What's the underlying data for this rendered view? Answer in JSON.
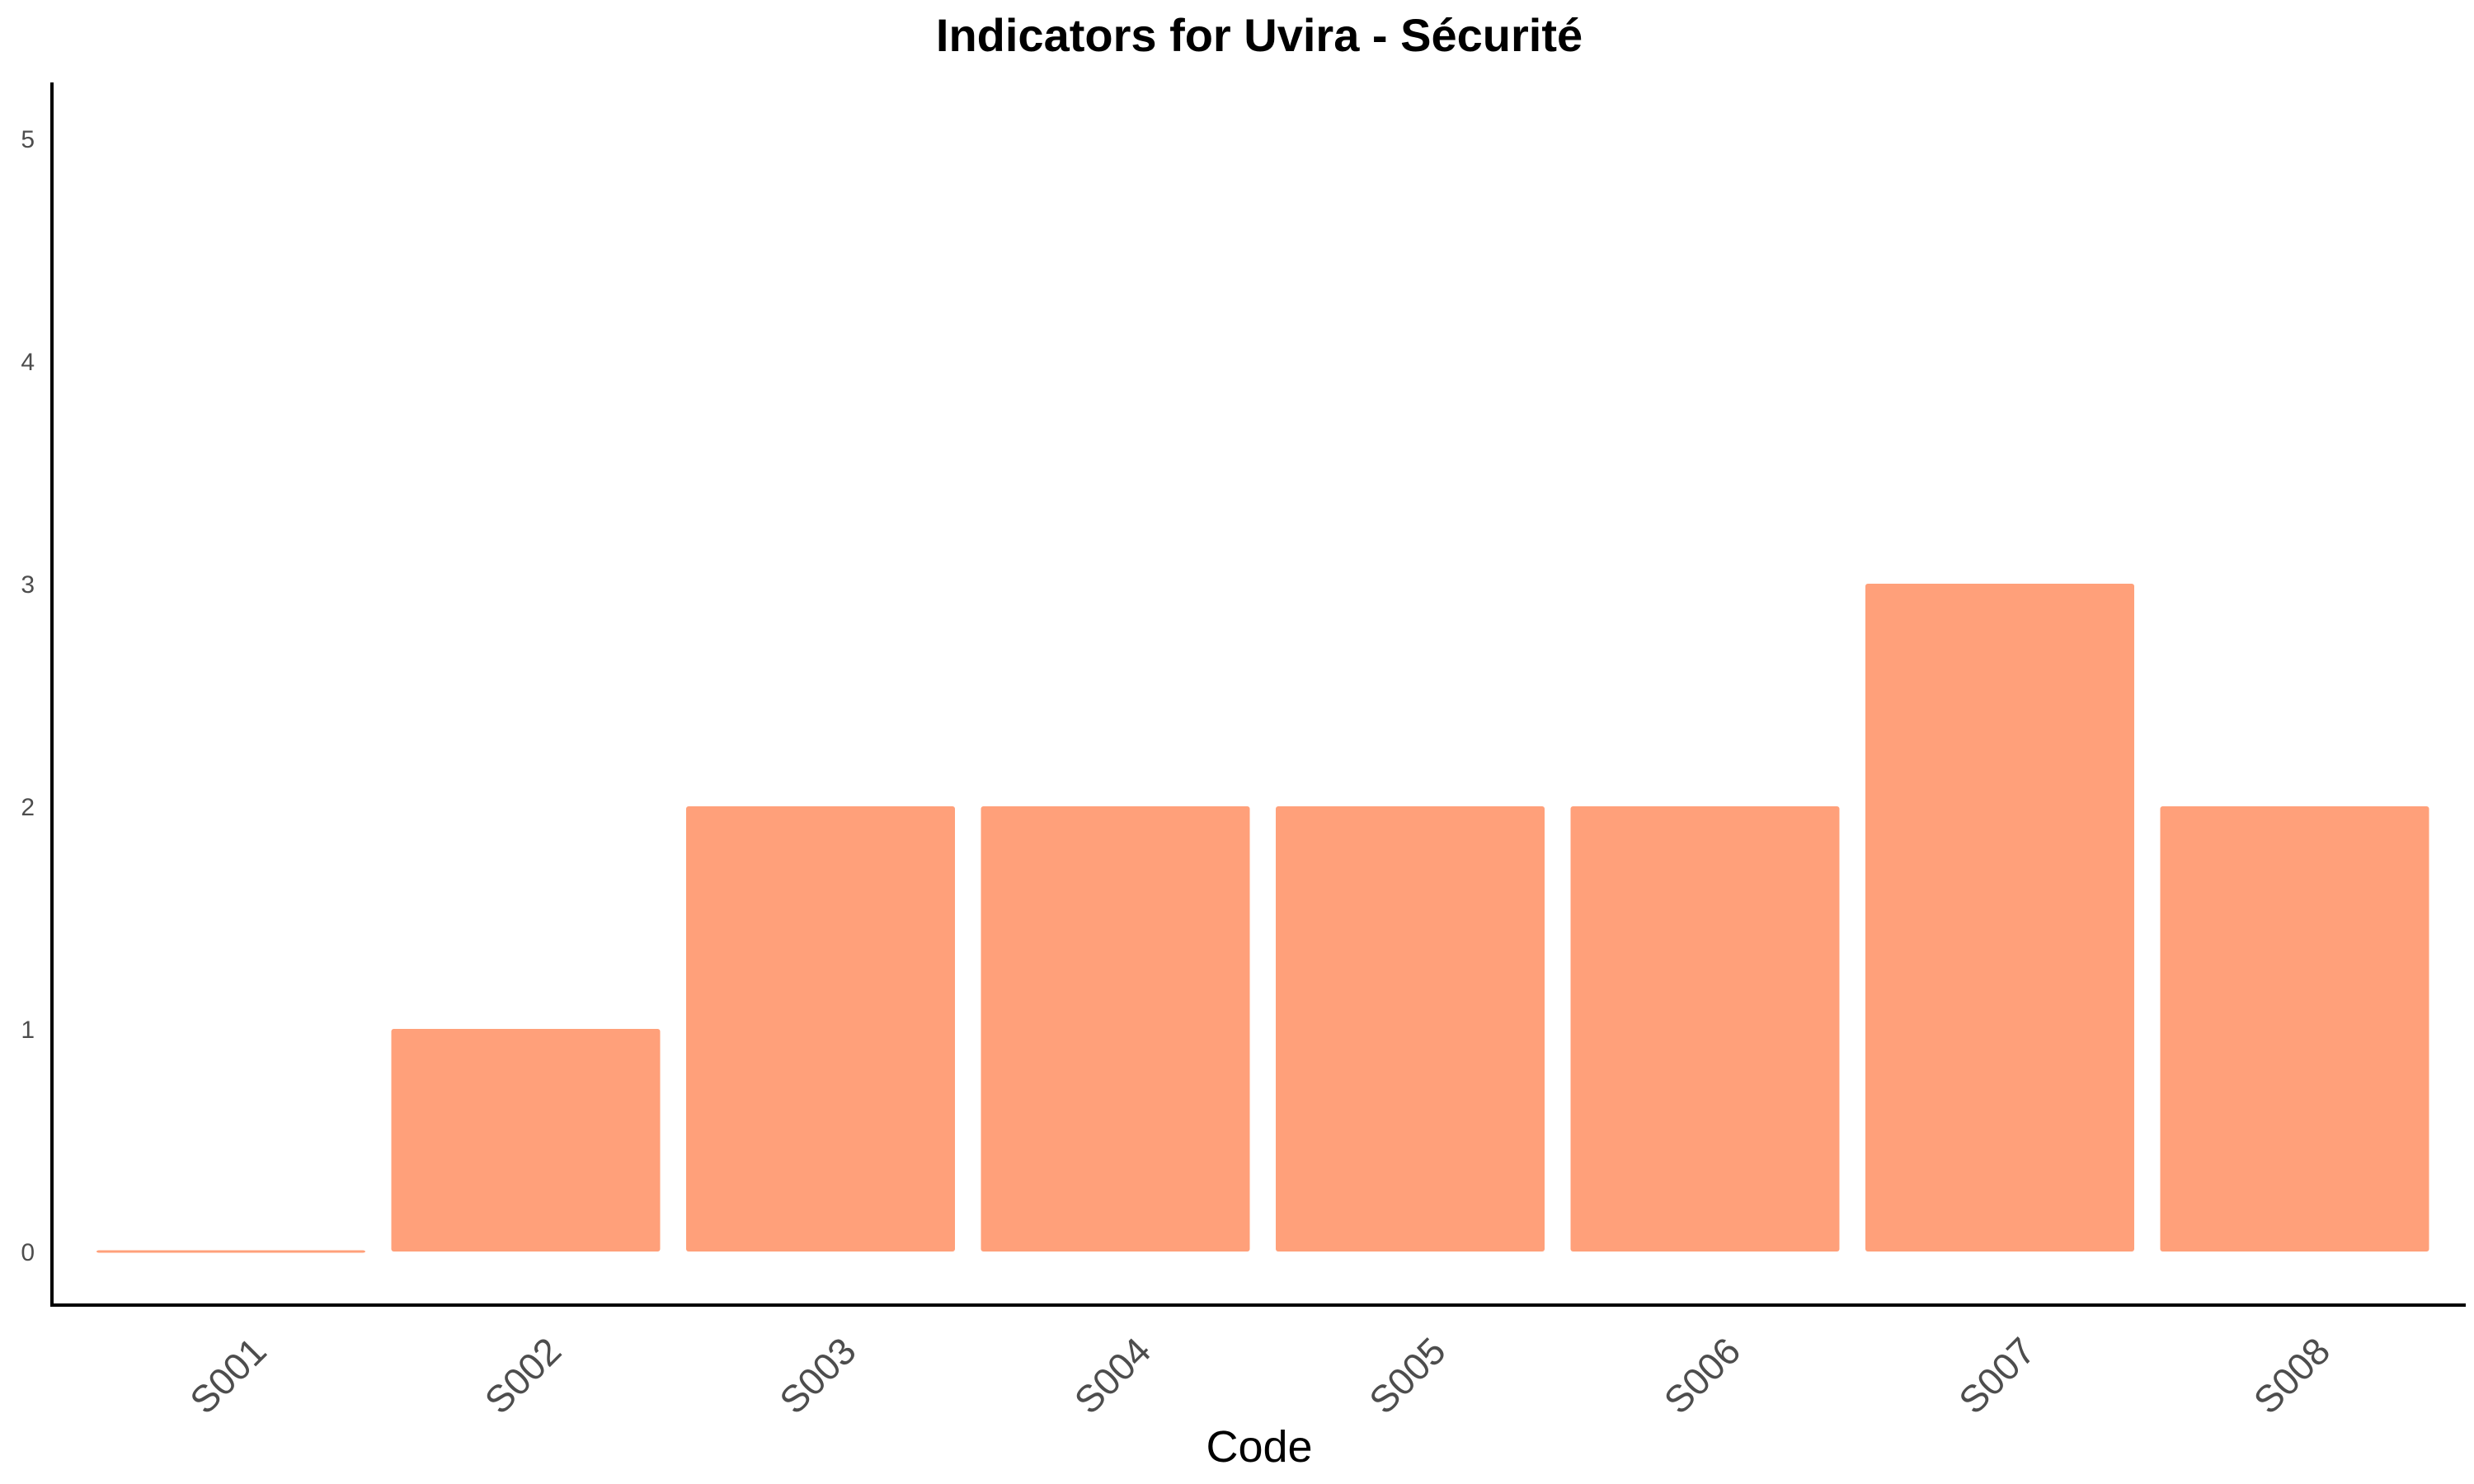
{
  "chart_data": {
    "type": "bar",
    "title": "Indicators for Uvira - Sécurité",
    "xlabel": "Code",
    "ylabel": "",
    "categories": [
      "S001",
      "S002",
      "S003",
      "S004",
      "S005",
      "S006",
      "S007",
      "S008"
    ],
    "values": [
      0,
      1,
      2,
      2,
      2,
      2,
      3,
      2
    ],
    "ylim": [
      0,
      5
    ],
    "yticks": [
      "0",
      "1",
      "2",
      "3",
      "4",
      "5"
    ],
    "grid": false,
    "legend": "none",
    "bar_color": "#FFA07A"
  }
}
